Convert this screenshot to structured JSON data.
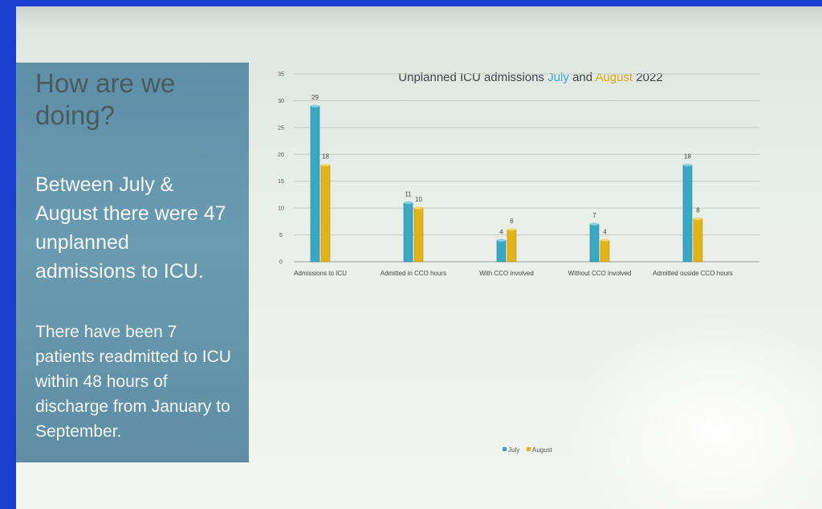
{
  "panel": {
    "heading": "How are we doing?",
    "paragraph1": "Between July & August there were 47 unplanned admissions to ICU.",
    "paragraph2": "There have been 7 patients readmitted to ICU within 48 hours of discharge from  January to September."
  },
  "chart_data": {
    "type": "bar",
    "title": "Unplanned ICU admissions July and August 2022",
    "title_parts": {
      "pre": "Unplanned ICU admissions ",
      "july": "July",
      "mid": " and ",
      "aug": "August",
      "post": " 2022"
    },
    "categories": [
      "Admissions to ICU",
      "Admitted in CCO hours",
      "With CCO involved",
      "Without CCO involved",
      "Admitted ouside CCO hours"
    ],
    "series": [
      {
        "name": "July",
        "values": [
          29,
          11,
          4,
          7,
          18
        ],
        "color": "#3aa7c4"
      },
      {
        "name": "August",
        "values": [
          18,
          10,
          6,
          4,
          8
        ],
        "color": "#e2b318"
      }
    ],
    "ylim": [
      0,
      35
    ],
    "yticks": [
      0,
      5,
      10,
      15,
      20,
      25,
      30,
      35
    ],
    "grid": true,
    "legend": "bottom-center",
    "xlabel": "",
    "ylabel": ""
  }
}
